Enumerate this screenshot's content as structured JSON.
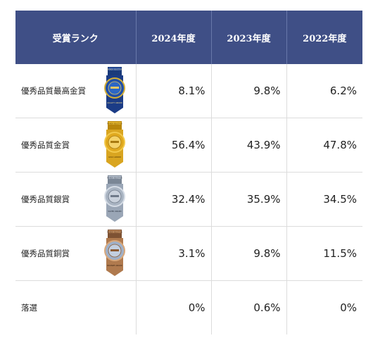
{
  "header": {
    "rank": "受賞ランク",
    "years": [
      "2024年度",
      "2023年度",
      "2022年度"
    ]
  },
  "rows": [
    {
      "label": "優秀品質最高金賞",
      "medal": "grand-gold-medal-icon",
      "values": [
        "8.1%",
        "9.8%",
        "6.2%"
      ]
    },
    {
      "label": "優秀品質金賞",
      "medal": "gold-medal-icon",
      "values": [
        "56.4%",
        "43.9%",
        "47.8%"
      ]
    },
    {
      "label": "優秀品質銀賞",
      "medal": "silver-medal-icon",
      "values": [
        "32.4%",
        "35.9%",
        "34.5%"
      ]
    },
    {
      "label": "優秀品質銅賞",
      "medal": "bronze-medal-icon",
      "values": [
        "3.1%",
        "9.8%",
        "11.5%"
      ]
    },
    {
      "label": "落選",
      "values": [
        "0%",
        "0.6%",
        "0%"
      ]
    }
  ],
  "medals": {
    "grand_gold": {
      "top": "MONDE SELECTION",
      "bottom": "QUALITY AWARD"
    },
    "gold": {
      "top": "MONDE SELECTION",
      "bottom": "GOLD AWARD"
    },
    "silver": {
      "top": "MONDE SELECTION",
      "bottom": "SILVER AWARD"
    },
    "bronze": {
      "top": "MONDE SELECTION",
      "bottom": "BRONZE AWARD"
    }
  },
  "colors": {
    "header_bg": "#3f4f86",
    "grand_gold": "#1f4fa8",
    "gold": "#d9a520",
    "silver": "#9aa6b6",
    "bronze": "#b07a4e"
  }
}
